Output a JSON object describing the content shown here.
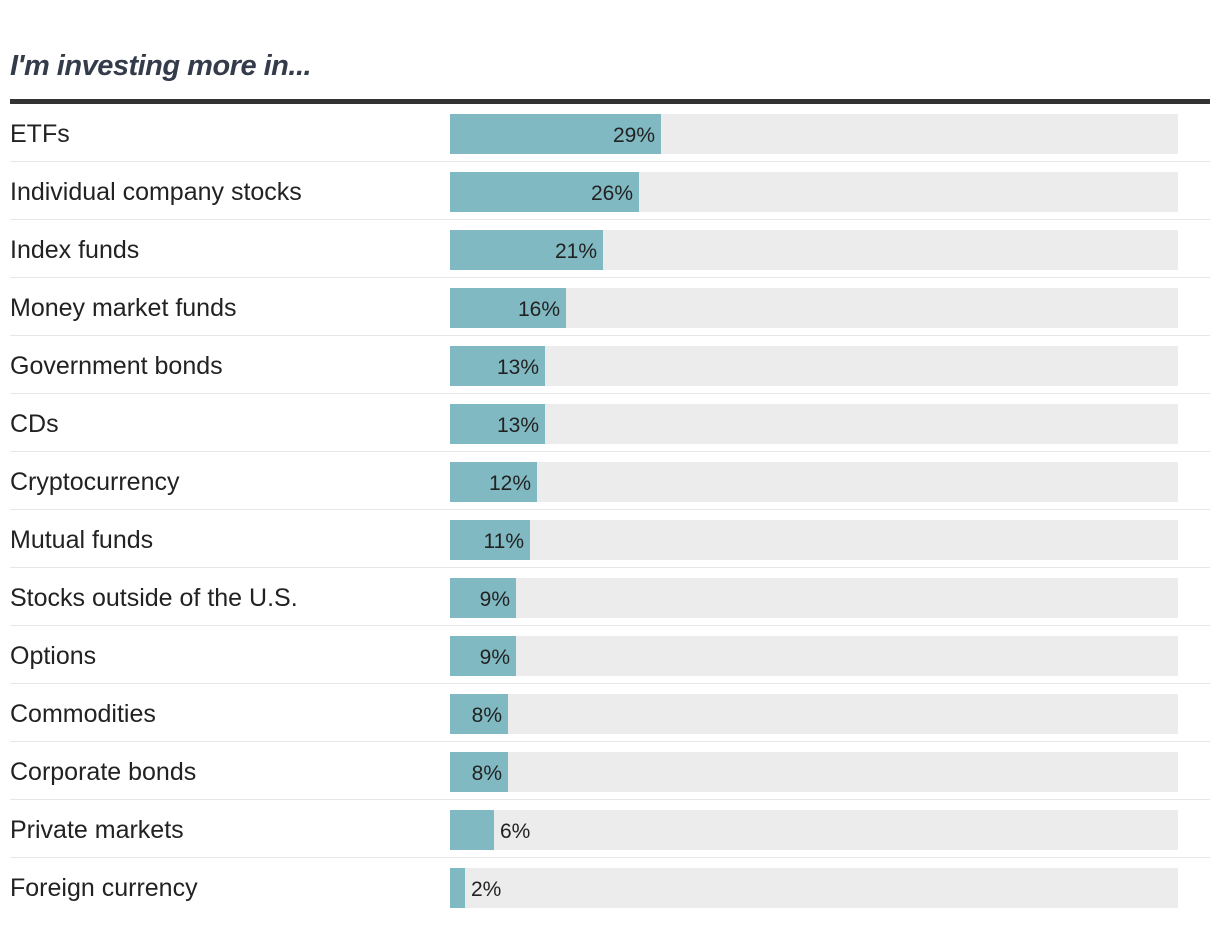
{
  "chart_data": {
    "type": "bar",
    "orientation": "horizontal",
    "title": "I'm investing more in...",
    "xlabel": "",
    "ylabel": "",
    "xlim": [
      0,
      100
    ],
    "grid": false,
    "categories": [
      "ETFs",
      "Individual company stocks",
      "Index funds",
      "Money market funds",
      "Government bonds",
      "CDs",
      "Cryptocurrency",
      "Mutual funds",
      "Stocks outside of the U.S.",
      "Options",
      "Commodities",
      "Corporate bonds",
      "Private markets",
      "Foreign currency"
    ],
    "values": [
      29,
      26,
      21,
      16,
      13,
      13,
      12,
      11,
      9,
      9,
      8,
      8,
      6,
      2
    ],
    "labels": [
      "29%",
      "26%",
      "21%",
      "16%",
      "13%",
      "13%",
      "12%",
      "11%",
      "9%",
      "9%",
      "8%",
      "8%",
      "6%",
      "2%"
    ],
    "colors": {
      "bar": "#80b9c2",
      "track": "#ececec",
      "title": "#343c4c",
      "rule": "#333333"
    }
  }
}
